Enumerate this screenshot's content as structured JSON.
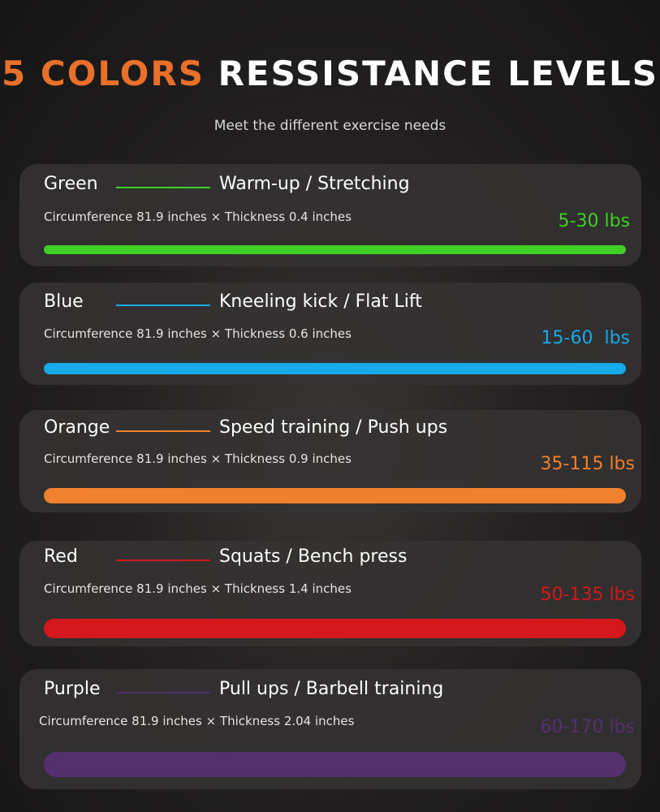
{
  "header": {
    "title_accent": "5 COLORS",
    "title_rest": " RESSISTANCE LEVELS",
    "subtitle": "Meet the different exercise needs",
    "accent_color": "#e8702a"
  },
  "levels": [
    {
      "name": "Green",
      "exercise": "Warm-up / Stretching",
      "spec": "Circumference 81.9 inches × Thickness 0.4 inches",
      "resistance": "5-30 lbs",
      "color": "#3fcf25"
    },
    {
      "name": "Blue",
      "exercise": "Kneeling kick / Flat Lift",
      "spec": "Circumference 81.9 inches × Thickness 0.6 inches",
      "resistance": "15-60  lbs",
      "color": "#17a9e8"
    },
    {
      "name": "Orange",
      "exercise": "Speed training / Push ups",
      "spec": "Circumference 81.9 inches × Thickness 0.9 inches",
      "resistance": "35-115 lbs",
      "color": "#f07f2e"
    },
    {
      "name": "Red",
      "exercise": "Squats / Bench press",
      "spec": "Circumference 81.9 inches × Thickness 1.4 inches",
      "resistance": "50-135 lbs",
      "color": "#d4171a"
    },
    {
      "name": "Purple",
      "exercise": "Pull ups / Barbell training",
      "spec": "Circumference 81.9 inches × Thickness 2.04 inches",
      "resistance": "60-170 lbs",
      "color": "#54306f"
    }
  ]
}
